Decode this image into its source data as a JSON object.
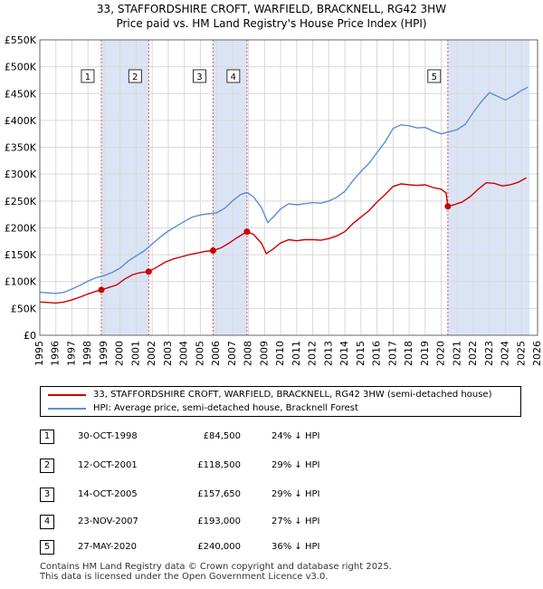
{
  "title": {
    "line1": "33, STAFFORDSHIRE CROFT, WARFIELD, BRACKNELL, RG42 3HW",
    "line2": "Price paid vs. HM Land Registry's House Price Index (HPI)"
  },
  "colors": {
    "property": "#cc0000",
    "hpi": "#5b8ed2",
    "shade": "#dbe4f5",
    "vline": "#e05555",
    "grid": "#d9d9d9"
  },
  "legend": {
    "property_label": "33, STAFFORDSHIRE CROFT, WARFIELD, BRACKNELL, RG42 3HW (semi-detached house)",
    "hpi_label": "HPI: Average price, semi-detached house, Bracknell Forest"
  },
  "transactions": [
    {
      "num": "1",
      "date": "30-OCT-1998",
      "price": "£84,500",
      "hpi": "24% ↓ HPI"
    },
    {
      "num": "2",
      "date": "12-OCT-2001",
      "price": "£118,500",
      "hpi": "29% ↓ HPI"
    },
    {
      "num": "3",
      "date": "14-OCT-2005",
      "price": "£157,650",
      "hpi": "29% ↓ HPI"
    },
    {
      "num": "4",
      "date": "23-NOV-2007",
      "price": "£193,000",
      "hpi": "27% ↓ HPI"
    },
    {
      "num": "5",
      "date": "27-MAY-2020",
      "price": "£240,000",
      "hpi": "36% ↓ HPI"
    }
  ],
  "footer": {
    "line1": "Contains HM Land Registry data © Crown copyright and database right 2025.",
    "line2": "This data is licensed under the Open Government Licence v3.0."
  },
  "chart_data": {
    "type": "line",
    "title": "33, STAFFORDSHIRE CROFT, WARFIELD, BRACKNELL, RG42 3HW — Price paid vs. HM Land Registry's House Price Index (HPI)",
    "xlabel": "",
    "ylabel": "",
    "xlim": [
      1995,
      2026
    ],
    "ylim": [
      0,
      550000
    ],
    "x_ticks": [
      1995,
      1996,
      1997,
      1998,
      1999,
      2000,
      2001,
      2002,
      2003,
      2004,
      2005,
      2006,
      2007,
      2008,
      2009,
      2010,
      2011,
      2012,
      2013,
      2014,
      2015,
      2016,
      2017,
      2018,
      2019,
      2020,
      2021,
      2022,
      2023,
      2024,
      2025,
      2026
    ],
    "y_ticks": [
      {
        "value": 0,
        "label": "£0"
      },
      {
        "value": 50000,
        "label": "£50K"
      },
      {
        "value": 100000,
        "label": "£100K"
      },
      {
        "value": 150000,
        "label": "£150K"
      },
      {
        "value": 200000,
        "label": "£200K"
      },
      {
        "value": 250000,
        "label": "£250K"
      },
      {
        "value": 300000,
        "label": "£300K"
      },
      {
        "value": 350000,
        "label": "£350K"
      },
      {
        "value": 400000,
        "label": "£400K"
      },
      {
        "value": 450000,
        "label": "£450K"
      },
      {
        "value": 500000,
        "label": "£500K"
      },
      {
        "value": 550000,
        "label": "£550K"
      }
    ],
    "grid": true,
    "shaded_ranges": [
      [
        1998.83,
        2001.78
      ],
      [
        2005.79,
        2007.9
      ],
      [
        2020.41,
        2025.5
      ]
    ],
    "sale_markers": [
      {
        "label": "1",
        "x": 1998.83,
        "y": 84500
      },
      {
        "label": "2",
        "x": 2001.78,
        "y": 118500
      },
      {
        "label": "3",
        "x": 2005.79,
        "y": 157650
      },
      {
        "label": "4",
        "x": 2007.9,
        "y": 193000
      },
      {
        "label": "5",
        "x": 2020.41,
        "y": 240000
      }
    ],
    "series": [
      {
        "name": "33, STAFFORDSHIRE CROFT, WARFIELD, BRACKNELL, RG42 3HW (semi-detached house)",
        "color": "#cc0000",
        "points": [
          [
            1995.0,
            62000
          ],
          [
            1995.5,
            61000
          ],
          [
            1996.0,
            60000
          ],
          [
            1996.5,
            62000
          ],
          [
            1997.0,
            66000
          ],
          [
            1997.5,
            71000
          ],
          [
            1998.0,
            77000
          ],
          [
            1998.5,
            82000
          ],
          [
            1998.83,
            84500
          ],
          [
            1999.3,
            89000
          ],
          [
            1999.8,
            94000
          ],
          [
            2000.3,
            105000
          ],
          [
            2000.8,
            113000
          ],
          [
            2001.3,
            117000
          ],
          [
            2001.78,
            118500
          ],
          [
            2002.3,
            127000
          ],
          [
            2002.8,
            136000
          ],
          [
            2003.3,
            142000
          ],
          [
            2003.8,
            146000
          ],
          [
            2004.3,
            150000
          ],
          [
            2004.8,
            153000
          ],
          [
            2005.3,
            156000
          ],
          [
            2005.79,
            157650
          ],
          [
            2006.3,
            163000
          ],
          [
            2006.8,
            172000
          ],
          [
            2007.3,
            182000
          ],
          [
            2007.9,
            193000
          ],
          [
            2008.3,
            188000
          ],
          [
            2008.8,
            172000
          ],
          [
            2009.1,
            152000
          ],
          [
            2009.5,
            160000
          ],
          [
            2010.0,
            172000
          ],
          [
            2010.5,
            178000
          ],
          [
            2011.0,
            176000
          ],
          [
            2011.5,
            178000
          ],
          [
            2012.0,
            178000
          ],
          [
            2012.5,
            177000
          ],
          [
            2013.0,
            180000
          ],
          [
            2013.5,
            185000
          ],
          [
            2014.0,
            193000
          ],
          [
            2014.5,
            208000
          ],
          [
            2015.0,
            220000
          ],
          [
            2015.5,
            232000
          ],
          [
            2016.0,
            248000
          ],
          [
            2016.5,
            262000
          ],
          [
            2017.0,
            277000
          ],
          [
            2017.5,
            282000
          ],
          [
            2018.0,
            280000
          ],
          [
            2018.5,
            279000
          ],
          [
            2019.0,
            280000
          ],
          [
            2019.5,
            275000
          ],
          [
            2020.0,
            272000
          ],
          [
            2020.3,
            265000
          ],
          [
            2020.41,
            240000
          ],
          [
            2020.8,
            243000
          ],
          [
            2021.3,
            248000
          ],
          [
            2021.8,
            258000
          ],
          [
            2022.3,
            272000
          ],
          [
            2022.8,
            284000
          ],
          [
            2023.3,
            283000
          ],
          [
            2023.8,
            278000
          ],
          [
            2024.3,
            280000
          ],
          [
            2024.8,
            285000
          ],
          [
            2025.3,
            293000
          ]
        ]
      },
      {
        "name": "HPI: Average price, semi-detached house, Bracknell Forest",
        "color": "#5b8ed2",
        "points": [
          [
            1995.0,
            80000
          ],
          [
            1995.5,
            79000
          ],
          [
            1996.0,
            78000
          ],
          [
            1996.5,
            80000
          ],
          [
            1997.0,
            86000
          ],
          [
            1997.5,
            93000
          ],
          [
            1998.0,
            101000
          ],
          [
            1998.5,
            107000
          ],
          [
            1999.0,
            111000
          ],
          [
            1999.5,
            117000
          ],
          [
            2000.0,
            125000
          ],
          [
            2000.5,
            138000
          ],
          [
            2001.0,
            148000
          ],
          [
            2001.5,
            157000
          ],
          [
            2002.0,
            170000
          ],
          [
            2002.5,
            183000
          ],
          [
            2003.0,
            194000
          ],
          [
            2003.5,
            203000
          ],
          [
            2004.0,
            212000
          ],
          [
            2004.5,
            220000
          ],
          [
            2005.0,
            224000
          ],
          [
            2005.5,
            226000
          ],
          [
            2006.0,
            228000
          ],
          [
            2006.5,
            236000
          ],
          [
            2007.0,
            250000
          ],
          [
            2007.5,
            262000
          ],
          [
            2007.9,
            266000
          ],
          [
            2008.3,
            258000
          ],
          [
            2008.8,
            238000
          ],
          [
            2009.2,
            210000
          ],
          [
            2009.6,
            222000
          ],
          [
            2010.0,
            235000
          ],
          [
            2010.5,
            245000
          ],
          [
            2011.0,
            243000
          ],
          [
            2011.5,
            245000
          ],
          [
            2012.0,
            247000
          ],
          [
            2012.5,
            246000
          ],
          [
            2013.0,
            250000
          ],
          [
            2013.5,
            257000
          ],
          [
            2014.0,
            268000
          ],
          [
            2014.5,
            288000
          ],
          [
            2015.0,
            305000
          ],
          [
            2015.5,
            320000
          ],
          [
            2016.0,
            340000
          ],
          [
            2016.5,
            360000
          ],
          [
            2017.0,
            385000
          ],
          [
            2017.5,
            392000
          ],
          [
            2018.0,
            390000
          ],
          [
            2018.5,
            386000
          ],
          [
            2019.0,
            387000
          ],
          [
            2019.5,
            380000
          ],
          [
            2020.0,
            375000
          ],
          [
            2020.41,
            378000
          ],
          [
            2021.0,
            383000
          ],
          [
            2021.5,
            393000
          ],
          [
            2022.0,
            415000
          ],
          [
            2022.5,
            435000
          ],
          [
            2023.0,
            452000
          ],
          [
            2023.5,
            445000
          ],
          [
            2024.0,
            438000
          ],
          [
            2024.5,
            446000
          ],
          [
            2025.0,
            456000
          ],
          [
            2025.4,
            462000
          ]
        ]
      }
    ]
  }
}
